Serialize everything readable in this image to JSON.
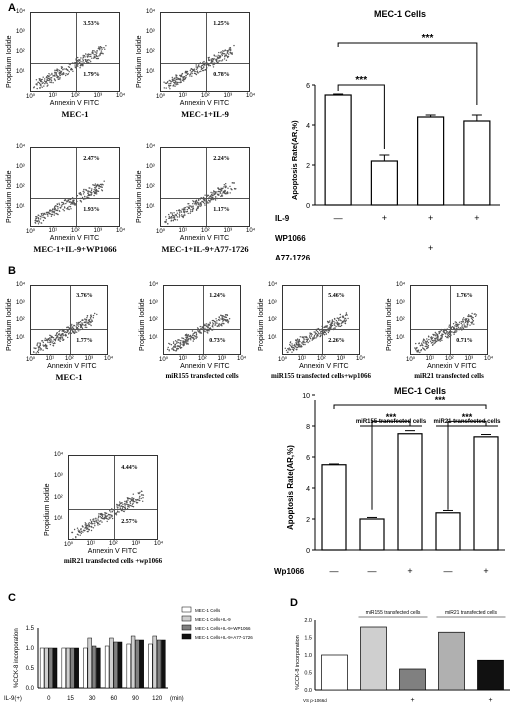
{
  "panels": {
    "a": "A",
    "b": "B",
    "c": "C",
    "d": "D"
  },
  "flow_axis": {
    "ylabel": "Propidium Iodide",
    "xlabel": "Annexin V  FITC",
    "ticks": [
      "10⁰",
      "10¹",
      "10²",
      "10³",
      "10⁴"
    ],
    "corner": "10⁰"
  },
  "flow_a": [
    {
      "caption": "MEC-1",
      "upper": "3.53%",
      "lower": "1.79%"
    },
    {
      "caption": "MEC-1+IL-9",
      "upper": "1.25%",
      "lower": "0.78%"
    },
    {
      "caption": "MEC-1+IL-9+WP1066",
      "upper": "2.47%",
      "lower": "1.93%"
    },
    {
      "caption": "MEC-1+IL-9+A77-1726",
      "upper": "2.24%",
      "lower": "1.17%"
    }
  ],
  "flow_b": [
    {
      "caption": "MEC-1",
      "upper": "3.76%",
      "lower": "1.77%"
    },
    {
      "caption": "miR155 transfected cells",
      "upper": "1.24%",
      "lower": "0.73%"
    },
    {
      "caption": "miR155 transfected cells+wp1066",
      "upper": "5.46%",
      "lower": "2.26%"
    },
    {
      "caption": "miR21 transfected cells",
      "upper": "1.76%",
      "lower": "0.71%"
    },
    {
      "caption": "miR21 transfected cells +wp1066",
      "upper": "4.44%",
      "lower": "2.57%"
    }
  ],
  "chart_data": [
    {
      "type": "bar",
      "title": "MEC-1 Cells",
      "ylabel": "Apoptosis Rate(AR,%)",
      "ylim": [
        0,
        6
      ],
      "yticks": [
        0,
        2,
        4,
        6
      ],
      "values": [
        5.5,
        2.2,
        4.4,
        4.2
      ],
      "errors": [
        0.05,
        0.3,
        0.1,
        0.3
      ],
      "rows": [
        {
          "label": "IL-9",
          "marks": [
            "—",
            "+",
            "+",
            "+"
          ]
        },
        {
          "label": "WP1066",
          "marks": [
            "",
            "",
            "+",
            ""
          ]
        },
        {
          "label": "A77-1726",
          "marks": [
            "",
            "",
            "",
            "+"
          ]
        }
      ],
      "significance": [
        "***",
        "***"
      ]
    },
    {
      "type": "bar",
      "title": "MEC-1 Cells",
      "ylabel": "Apoptosis Rate(AR,%)",
      "ylim": [
        0,
        10
      ],
      "yticks": [
        0,
        2,
        4,
        6,
        8,
        10
      ],
      "values": [
        5.5,
        2.0,
        7.5,
        2.4,
        7.3
      ],
      "errors": [
        0.05,
        0.1,
        0.2,
        0.15,
        0.15
      ],
      "rows": [
        {
          "label": "Wp1066",
          "marks": [
            "—",
            "—",
            "+",
            "—",
            "+"
          ]
        }
      ],
      "groups": [
        "miR155 transfected cells",
        "miR21 transfected cells"
      ],
      "significance": [
        "***",
        "***",
        "***"
      ]
    },
    {
      "type": "bar",
      "ylabel": "%CCK-8 incorporation",
      "ylim": [
        0,
        1.5
      ],
      "yticks": [
        "0.0",
        "0.5",
        "1.0",
        "1.5"
      ],
      "xlabel_prefix": "IL-9(+)",
      "categories": [
        "0",
        "15",
        "30",
        "60",
        "90",
        "120"
      ],
      "unit": "(min)",
      "series": [
        {
          "name": "MEC-1 Cells",
          "color": "#ffffff",
          "values": [
            1.0,
            1.0,
            1.0,
            1.05,
            1.1,
            1.1
          ]
        },
        {
          "name": "MEC-1 Cells+IL-9",
          "color": "#cfcfcf",
          "values": [
            1.0,
            1.0,
            1.25,
            1.25,
            1.3,
            1.3
          ]
        },
        {
          "name": "MEC-1 Cells+IL-9+WP1066",
          "color": "#808080",
          "values": [
            1.0,
            1.0,
            1.05,
            1.15,
            1.2,
            1.2
          ]
        },
        {
          "name": "MEC-1 Cells+IL-9+A77-1726",
          "color": "#111111",
          "values": [
            1.0,
            1.0,
            1.0,
            1.15,
            1.2,
            1.2
          ]
        }
      ]
    },
    {
      "type": "bar",
      "ylabel": "%CCK-8 incorporation",
      "ylim": [
        0,
        2.0
      ],
      "yticks": [
        "0.0",
        "0.5",
        "1.0",
        "1.5",
        "2.0"
      ],
      "values": [
        1.0,
        1.8,
        0.6,
        1.65,
        0.85
      ],
      "colors": [
        "#ffffff",
        "#cfcfcf",
        "#808080",
        "#b0b0b0",
        "#111111"
      ],
      "groups": [
        "miR155 transfected cells",
        "miR21 transfected cells"
      ],
      "row_label": "VS p-1066d",
      "marks": [
        "",
        "",
        "+",
        "",
        "+"
      ]
    }
  ]
}
